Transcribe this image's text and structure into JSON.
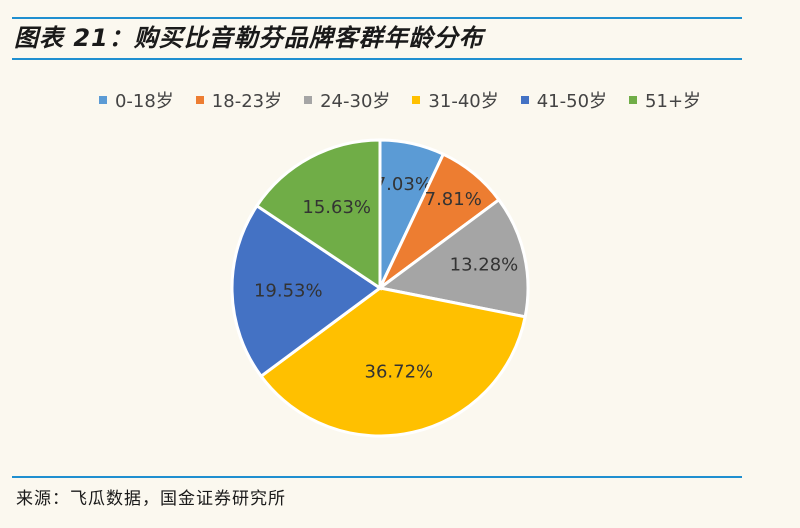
{
  "header": {
    "title": "图表 21：购买比音勒芬品牌客群年龄分布"
  },
  "footer": {
    "source": "来源：飞瓜数据，国金证券研究所"
  },
  "chart_data": {
    "type": "pie",
    "title": "图表 21：购买比音勒芬品牌客群年龄分布",
    "legend_position": "top",
    "categories": [
      "0-18岁",
      "18-23岁",
      "24-30岁",
      "31-40岁",
      "41-50岁",
      "51+岁"
    ],
    "values": [
      7.03,
      7.81,
      13.28,
      36.72,
      19.53,
      15.63
    ],
    "labels": [
      "7.03%",
      "7.81%",
      "13.28%",
      "36.72%",
      "19.53%",
      "15.63%"
    ],
    "colors": [
      "#5b9bd5",
      "#ed7d31",
      "#a5a5a5",
      "#ffc000",
      "#4472c4",
      "#70ad47"
    ]
  }
}
